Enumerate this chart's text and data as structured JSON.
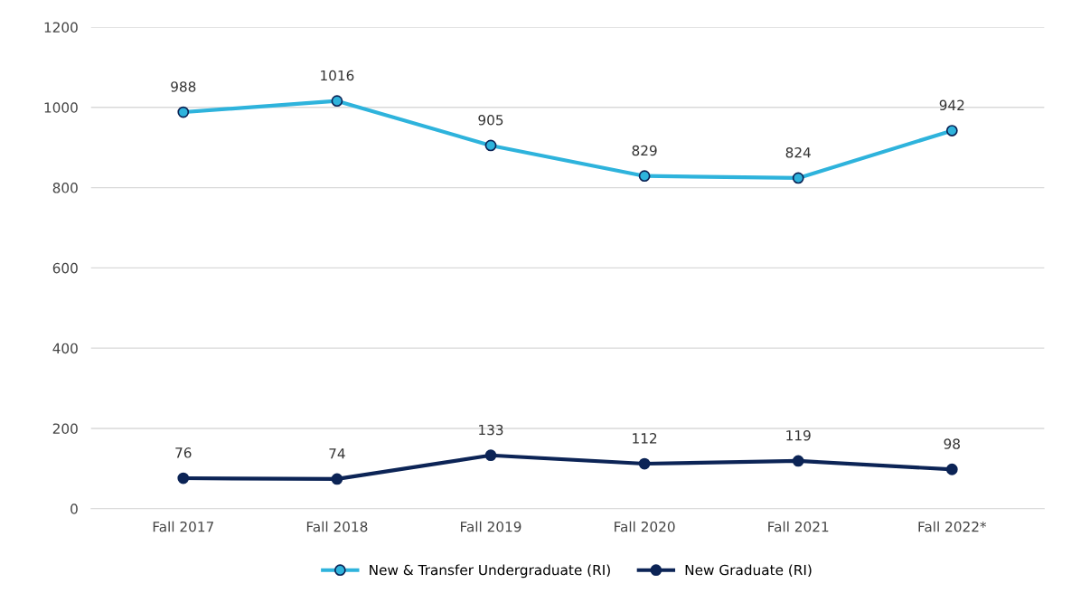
{
  "chart_data": {
    "type": "line",
    "categories": [
      "Fall 2017",
      "Fall 2018",
      "Fall 2019",
      "Fall 2020",
      "Fall 2021",
      "Fall 2022*"
    ],
    "series": [
      {
        "name": "New & Transfer Undergraduate (RI)",
        "color": "#2eb3dc",
        "values": [
          988,
          1016,
          905,
          829,
          824,
          942
        ]
      },
      {
        "name": "New Graduate (RI)",
        "color": "#0c2456",
        "values": [
          76,
          74,
          133,
          112,
          119,
          98
        ]
      }
    ],
    "ylim": [
      0,
      1200
    ],
    "yticks": [
      0,
      200,
      400,
      600,
      800,
      1000,
      1200
    ],
    "grid": "y",
    "legend": "bottom",
    "marker": "circle",
    "line_style": "solid",
    "data_labels": true
  }
}
